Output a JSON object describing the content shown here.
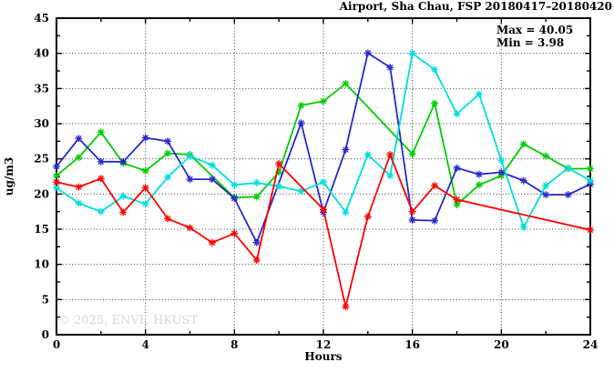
{
  "chart_data": {
    "type": "line",
    "title": "Airport, Sha Chau, FSP 20180417–20180420",
    "xlabel": "Hours",
    "ylabel": "ug/m3",
    "xlim": [
      0,
      24
    ],
    "ylim": [
      0,
      45
    ],
    "x_major_ticks": [
      0,
      4,
      8,
      12,
      16,
      20,
      24
    ],
    "x_minor_step": 2,
    "y_major_ticks": [
      0,
      5,
      10,
      15,
      20,
      25,
      30,
      35,
      40,
      45
    ],
    "y_minor_step": 2.5,
    "grid": {
      "style": "dotted",
      "x_at": [
        4,
        8,
        12,
        16,
        20
      ],
      "y_at": [
        5,
        10,
        15,
        20,
        25,
        30,
        35,
        40
      ]
    },
    "legend": "none",
    "marker": "asterisk",
    "annotations": {
      "max_label": "Max = 40.05",
      "min_label": "Min =  3.98"
    },
    "watermark": "© 2025, ENVF, HKUST",
    "x": [
      0,
      1,
      2,
      3,
      4,
      5,
      6,
      7,
      8,
      9,
      10,
      11,
      12,
      13,
      14,
      15,
      16,
      17,
      18,
      19,
      20,
      21,
      22,
      23,
      24
    ],
    "series": [
      {
        "name": "green",
        "color": "#00cc00",
        "values": [
          22.6,
          25.2,
          28.8,
          24.4,
          23.3,
          25.8,
          25.6,
          null,
          19.5,
          19.6,
          23.1,
          32.6,
          33.2,
          35.7,
          null,
          null,
          25.7,
          32.9,
          18.5,
          21.3,
          22.6,
          27.1,
          25.4,
          23.6,
          23.6
        ]
      },
      {
        "name": "blue",
        "color": "#2828cc",
        "values": [
          23.9,
          27.9,
          24.6,
          24.6,
          28.0,
          27.5,
          22.1,
          22.1,
          19.4,
          13.1,
          null,
          30.1,
          17.4,
          26.3,
          40.05,
          38.0,
          16.3,
          16.2,
          23.7,
          22.8,
          23.1,
          21.9,
          19.9,
          19.9,
          21.4
        ]
      },
      {
        "name": "cyan",
        "color": "#00dddd",
        "values": [
          20.9,
          18.7,
          17.5,
          19.7,
          18.6,
          22.4,
          25.4,
          24.1,
          21.3,
          21.6,
          21.1,
          20.4,
          21.7,
          17.4,
          25.6,
          22.6,
          40.0,
          37.7,
          31.4,
          34.2,
          24.8,
          15.3,
          21.2,
          23.7,
          21.9
        ]
      },
      {
        "name": "red",
        "color": "#ff0000",
        "values": [
          21.7,
          21.0,
          22.2,
          17.4,
          20.9,
          16.5,
          15.2,
          13.1,
          14.4,
          10.6,
          24.3,
          null,
          17.8,
          3.98,
          16.8,
          25.6,
          17.5,
          21.2,
          19.2,
          null,
          null,
          null,
          null,
          null,
          14.9
        ]
      }
    ]
  }
}
